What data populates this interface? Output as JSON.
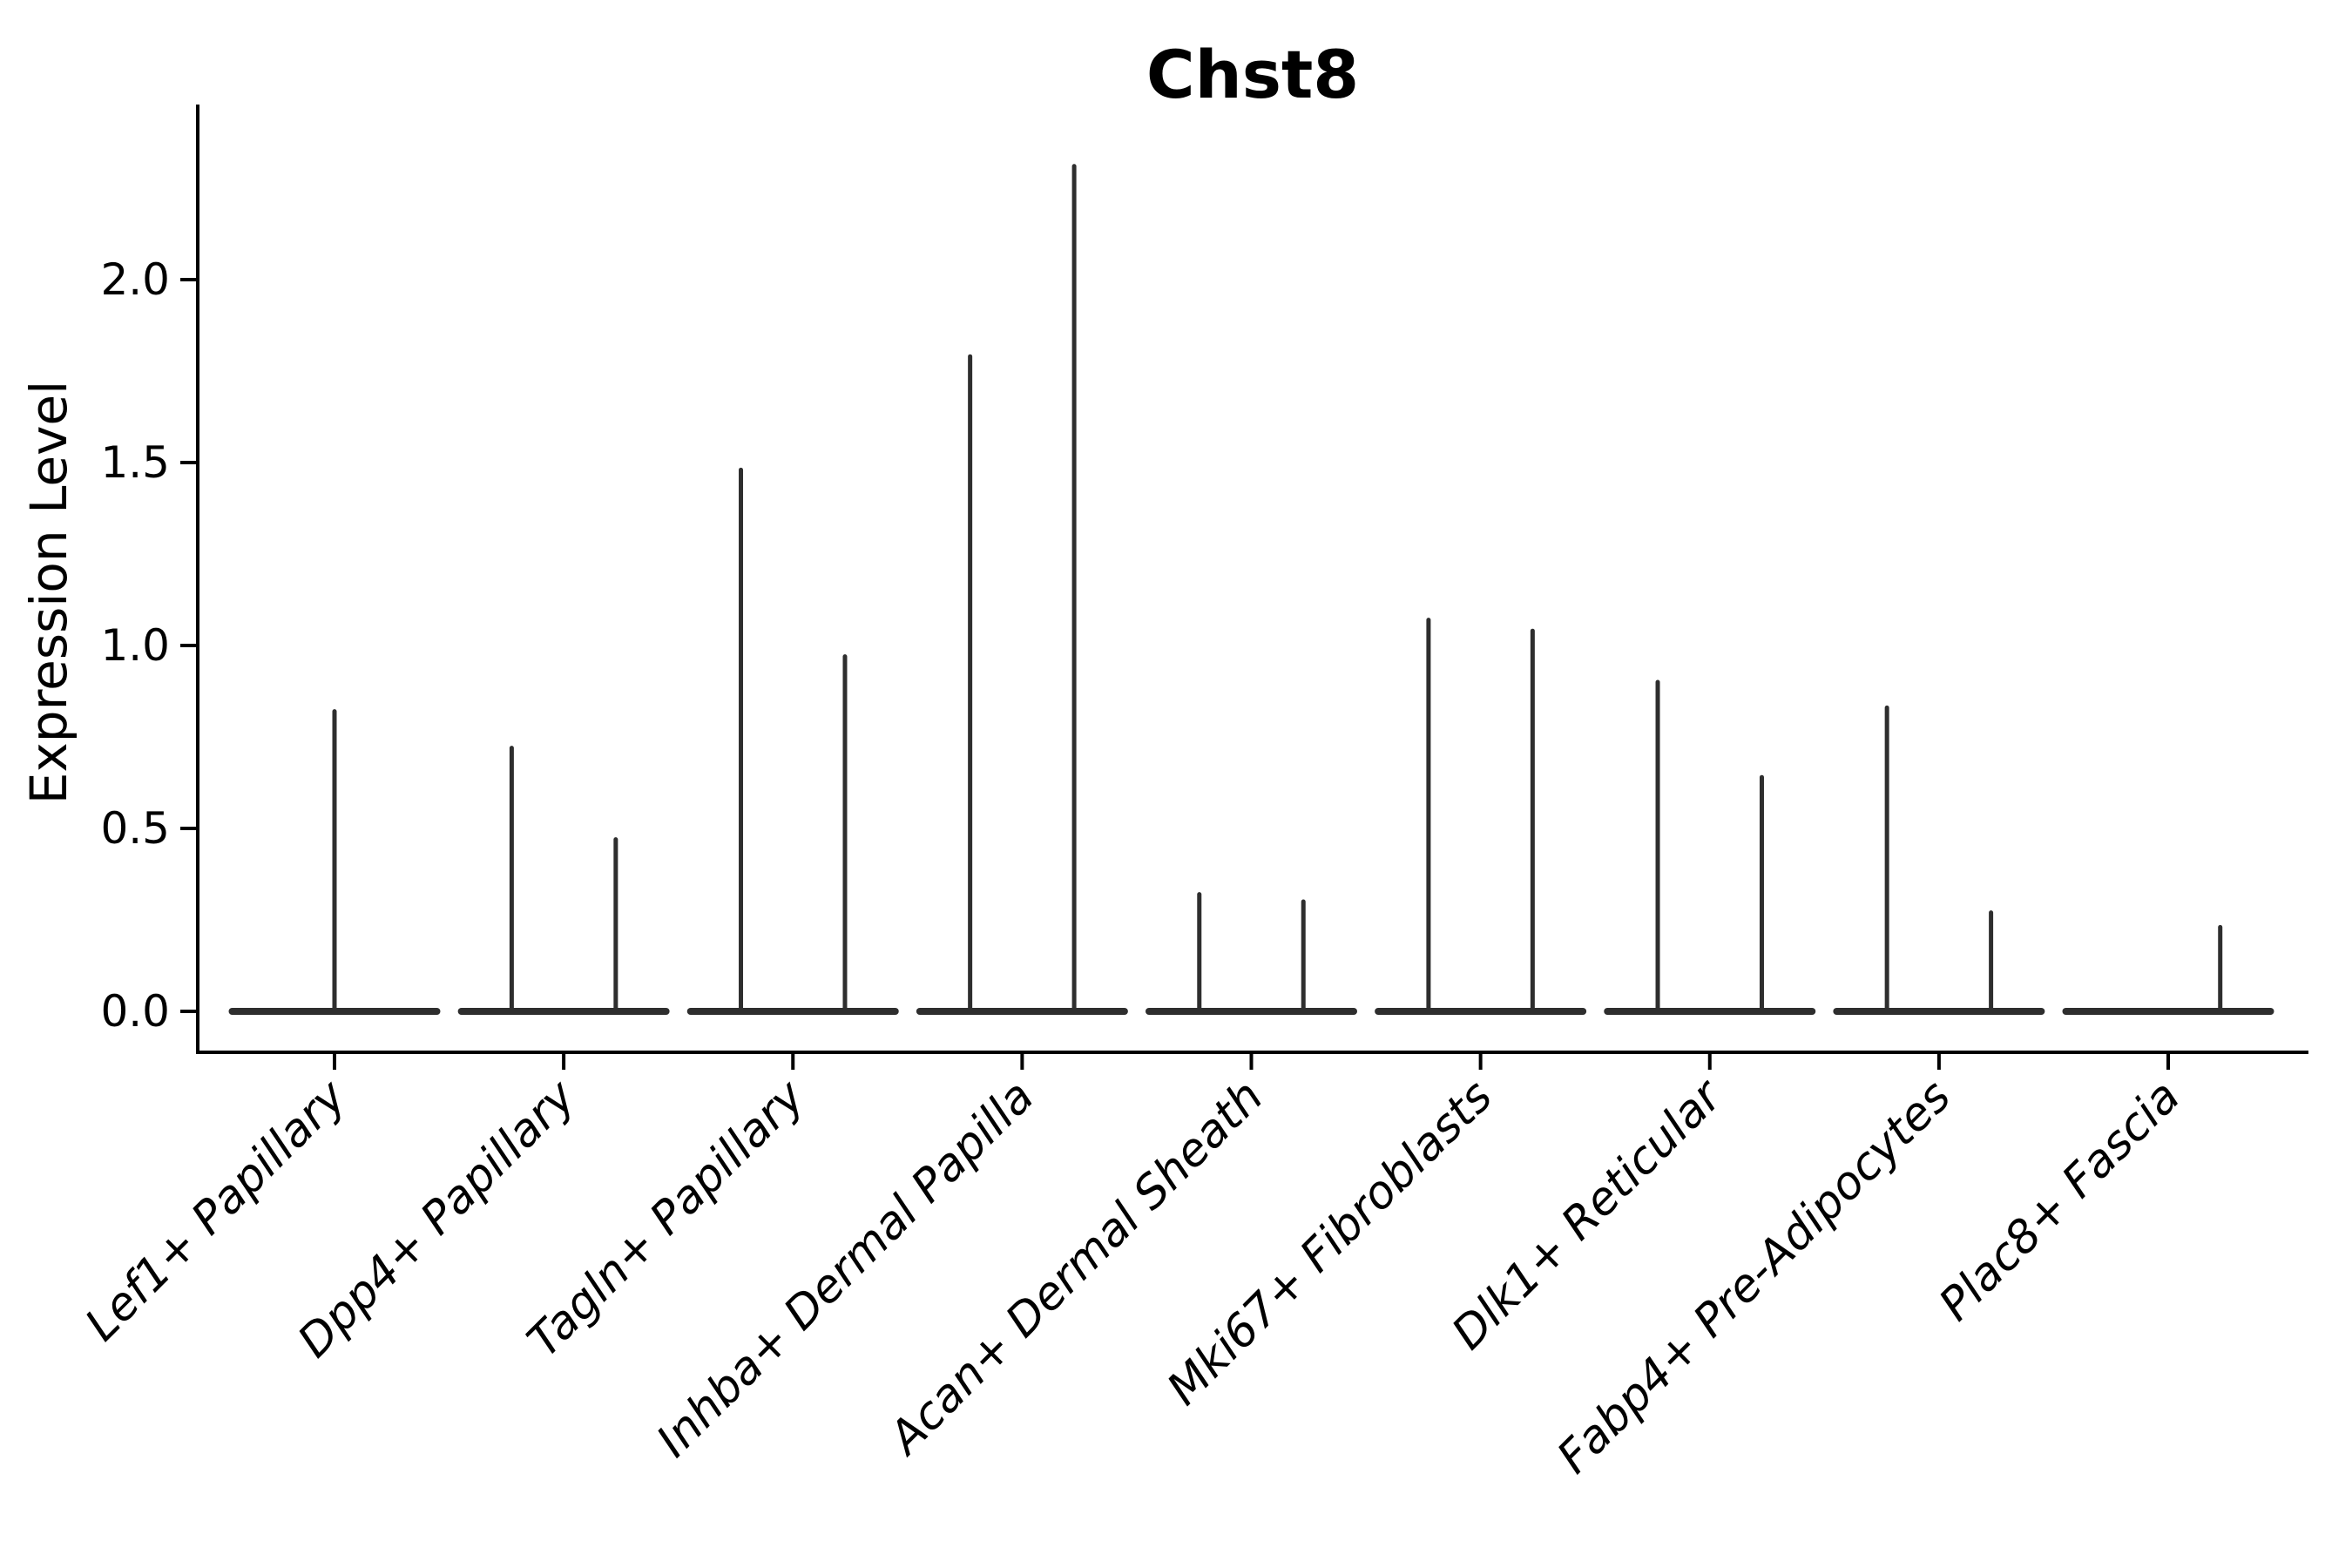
{
  "chart_data": {
    "type": "violin",
    "title": "Chst8",
    "ylabel": "Expression Level",
    "xlabel": "",
    "ytick_labels": [
      "0.0",
      "0.5",
      "1.0",
      "1.5",
      "2.0"
    ],
    "ytick_values": [
      0.0,
      0.5,
      1.0,
      1.5,
      2.0
    ],
    "ylim": [
      -0.11,
      2.48
    ],
    "grid": false,
    "legend": null,
    "categories": [
      "Lef1+ Papillary",
      "Dpp4+ Papillary",
      "Tagln+ Papillary",
      "Inhba+ Dermal Papilla",
      "Acan+ Dermal Sheath",
      "Mki67+ Fibroblasts",
      "Dlk1+ Reticular",
      "Fabp4+ Pre-Adipocytes",
      "Plac8+ Fascia"
    ],
    "groups": [
      {
        "label": "Lef1+ Papillary",
        "spikes": [
          {
            "position": "center",
            "max": 0.82
          }
        ]
      },
      {
        "label": "Dpp4+ Papillary",
        "spikes": [
          {
            "position": "left",
            "max": 0.72
          },
          {
            "position": "right",
            "max": 0.47
          }
        ]
      },
      {
        "label": "Tagln+ Papillary",
        "spikes": [
          {
            "position": "left",
            "max": 1.48
          },
          {
            "position": "right",
            "max": 0.97
          }
        ]
      },
      {
        "label": "Inhba+ Dermal Papilla",
        "spikes": [
          {
            "position": "left",
            "max": 1.79
          },
          {
            "position": "right",
            "max": 2.31
          }
        ]
      },
      {
        "label": "Acan+ Dermal Sheath",
        "spikes": [
          {
            "position": "left",
            "max": 0.32
          },
          {
            "position": "right",
            "max": 0.3
          }
        ]
      },
      {
        "label": "Mki67+ Fibroblasts",
        "spikes": [
          {
            "position": "left",
            "max": 1.07
          },
          {
            "position": "right",
            "max": 1.04
          }
        ]
      },
      {
        "label": "Dlk1+ Reticular",
        "spikes": [
          {
            "position": "left",
            "max": 0.9
          },
          {
            "position": "right",
            "max": 0.64
          }
        ]
      },
      {
        "label": "Fabp4+ Pre-Adipocytes",
        "spikes": [
          {
            "position": "left",
            "max": 0.83
          },
          {
            "position": "right",
            "max": 0.27
          }
        ]
      },
      {
        "label": "Plac8+ Fascia",
        "spikes": [
          {
            "position": "right",
            "max": 0.23
          }
        ]
      }
    ],
    "colors": {
      "ink": "#000000",
      "violin": "#2e2e2e",
      "background": "#ffffff"
    }
  }
}
